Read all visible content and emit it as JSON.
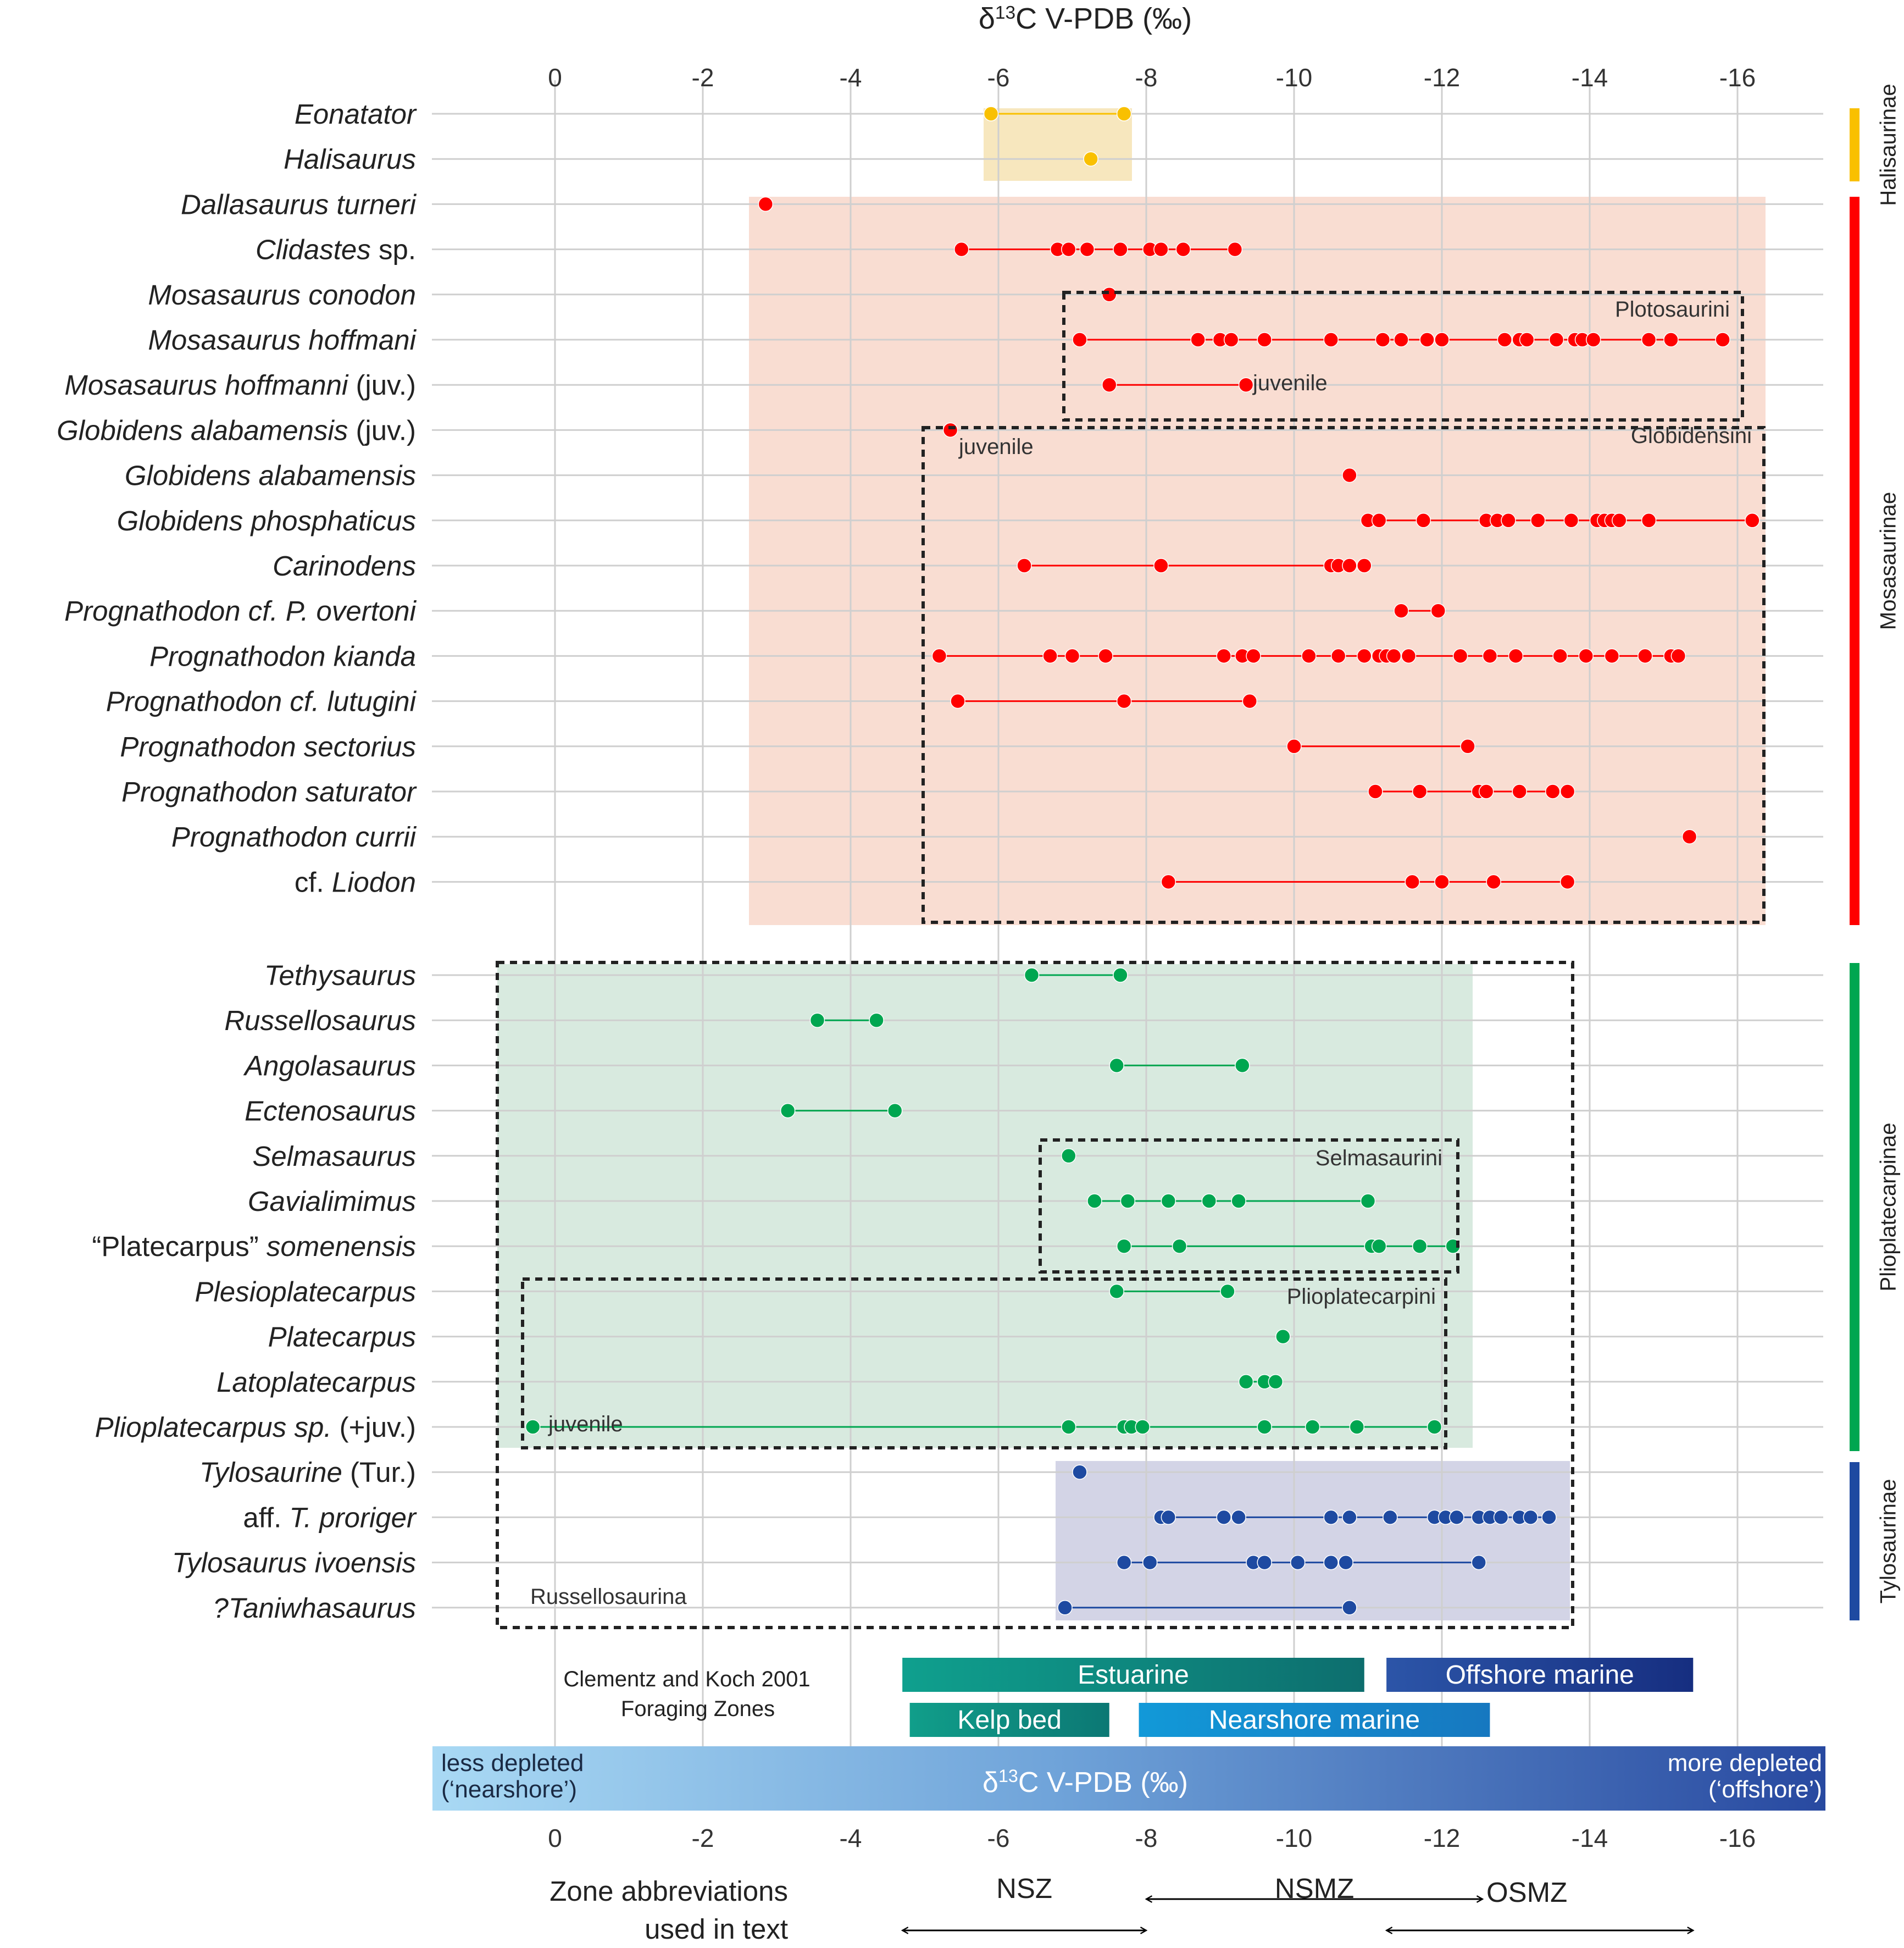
{
  "chart_data": {
    "type": "scatter",
    "title": "δ13C V-PDB (‰)",
    "xlabel": "δ13C V-PDB (‰)",
    "x_ticks": [
      "0",
      "-2",
      "-4",
      "-6",
      "-8",
      "-10",
      "-12",
      "-14",
      "-16"
    ],
    "xlim": [
      1.7,
      -17.1
    ],
    "taxa": [
      {
        "name": "Eonatator",
        "suffix": "",
        "prefix": "",
        "group": "Halisaurinae",
        "values": [
          -5.9,
          -7.7
        ]
      },
      {
        "name": "Halisaurus",
        "suffix": "",
        "prefix": "",
        "group": "Halisaurinae",
        "values": [
          -7.25
        ]
      },
      {
        "name": "Dallasaurus turneri",
        "suffix": "",
        "prefix": "",
        "group": "Mosasaurinae",
        "values": [
          -2.85
        ]
      },
      {
        "name": "Clidastes",
        "suffix": " sp.",
        "prefix": "",
        "group": "Mosasaurinae",
        "values": [
          -5.5,
          -6.8,
          -6.95,
          -7.2,
          -7.65,
          -8.05,
          -8.2,
          -8.5,
          -9.2
        ]
      },
      {
        "name": "Mosasaurus conodon",
        "suffix": "",
        "prefix": "",
        "group": "Mosasaurinae",
        "values": [
          -7.5
        ]
      },
      {
        "name": "Mosasaurus hoffmani",
        "suffix": "",
        "prefix": "",
        "group": "Mosasaurinae",
        "values": [
          -7.1,
          -8.7,
          -9.0,
          -9.15,
          -9.6,
          -10.5,
          -11.2,
          -11.45,
          -11.8,
          -12.0,
          -12.85,
          -13.05,
          -13.15,
          -13.55,
          -13.8,
          -13.9,
          -14.05,
          -14.8,
          -15.1,
          -15.8
        ]
      },
      {
        "name": "Mosasaurus hoffmanni",
        "suffix": " (juv.)",
        "prefix": "",
        "group": "Mosasaurinae",
        "values": [
          -7.5,
          -9.35
        ]
      },
      {
        "name": "Globidens alabamensis",
        "suffix": " (juv.)",
        "prefix": "",
        "group": "Mosasaurinae",
        "values": [
          -5.35
        ]
      },
      {
        "name": "Globidens alabamensis",
        "suffix": "",
        "prefix": "",
        "group": "Mosasaurinae",
        "values": [
          -10.75
        ]
      },
      {
        "name": "Globidens phosphaticus",
        "suffix": "",
        "prefix": "",
        "group": "Mosasaurinae",
        "values": [
          -11.0,
          -11.15,
          -11.75,
          -12.6,
          -12.75,
          -12.9,
          -13.3,
          -13.75,
          -14.1,
          -14.2,
          -14.3,
          -14.4,
          -14.8,
          -16.2
        ]
      },
      {
        "name": "Carinodens",
        "suffix": "",
        "prefix": "",
        "group": "Mosasaurinae",
        "values": [
          -6.35,
          -8.2,
          -10.5,
          -10.6,
          -10.75,
          -10.95
        ]
      },
      {
        "name": "Prognathodon cf. P. overtoni",
        "suffix": "",
        "prefix": "",
        "group": "Mosasaurinae",
        "values": [
          -11.45,
          -11.95
        ]
      },
      {
        "name": "Prognathodon kianda",
        "suffix": "",
        "prefix": "",
        "group": "Mosasaurinae",
        "values": [
          -5.2,
          -6.7,
          -7.0,
          -7.45,
          -9.05,
          -9.3,
          -9.45,
          -10.2,
          -10.6,
          -10.95,
          -11.15,
          -11.25,
          -11.35,
          -11.55,
          -12.25,
          -12.65,
          -13.0,
          -13.6,
          -13.95,
          -14.3,
          -14.75,
          -15.1,
          -15.2
        ]
      },
      {
        "name": "Prognathodon cf. lutugini",
        "suffix": "",
        "prefix": "",
        "group": "Mosasaurinae",
        "values": [
          -5.45,
          -7.7,
          -9.4
        ]
      },
      {
        "name": "Prognathodon sectorius",
        "suffix": "",
        "prefix": "",
        "group": "Mosasaurinae",
        "values": [
          -10.0,
          -12.35
        ]
      },
      {
        "name": "Prognathodon saturator",
        "suffix": "",
        "prefix": "",
        "group": "Mosasaurinae",
        "values": [
          -11.1,
          -11.7,
          -12.5,
          -12.6,
          -13.05,
          -13.5,
          -13.7
        ]
      },
      {
        "name": "Prognathodon currii",
        "suffix": "",
        "prefix": "",
        "group": "Mosasaurinae",
        "values": [
          -15.35
        ]
      },
      {
        "name": "Liodon",
        "suffix": "",
        "prefix": "cf. ",
        "group": "Mosasaurinae",
        "values": [
          -8.3,
          -11.6,
          -12.0,
          -12.7,
          -13.7
        ]
      },
      {
        "name": "Tethysaurus",
        "suffix": "",
        "prefix": "",
        "group": "Plioplatecarpinae",
        "values": [
          -6.45,
          -7.65
        ]
      },
      {
        "name": "Russellosaurus",
        "suffix": "",
        "prefix": "",
        "group": "Plioplatecarpinae",
        "values": [
          -3.55,
          -4.35
        ]
      },
      {
        "name": "Angolasaurus",
        "suffix": "",
        "prefix": "",
        "group": "Plioplatecarpinae",
        "values": [
          -7.6,
          -9.3
        ]
      },
      {
        "name": "Ectenosaurus",
        "suffix": "",
        "prefix": "",
        "group": "Plioplatecarpinae",
        "values": [
          -3.15,
          -4.6
        ]
      },
      {
        "name": "Selmasaurus",
        "suffix": "",
        "prefix": "",
        "group": "Plioplatecarpinae",
        "values": [
          -6.95
        ]
      },
      {
        "name": "Gavialimimus",
        "suffix": "",
        "prefix": "",
        "group": "Plioplatecarpinae",
        "values": [
          -7.3,
          -7.75,
          -8.3,
          -8.85,
          -9.25,
          -11.0
        ]
      },
      {
        "name": "somenensis",
        "suffix": "",
        "prefix": "“Platecarpus” ",
        "group": "Plioplatecarpinae",
        "values": [
          -7.7,
          -8.45,
          -11.05,
          -11.15,
          -11.7,
          -12.15
        ]
      },
      {
        "name": "Plesioplatecarpus",
        "suffix": "",
        "prefix": "",
        "group": "Plioplatecarpinae",
        "values": [
          -7.6,
          -9.1
        ]
      },
      {
        "name": "Platecarpus",
        "suffix": "",
        "prefix": "",
        "group": "Plioplatecarpinae",
        "values": [
          -9.85
        ]
      },
      {
        "name": "Latoplatecarpus",
        "suffix": "",
        "prefix": "",
        "group": "Plioplatecarpinae",
        "values": [
          -9.35,
          -9.6,
          -9.75
        ]
      },
      {
        "name": "Plioplatecarpus sp.",
        "suffix": " (+juv.)",
        "prefix": "",
        "group": "Plioplatecarpinae",
        "values": [
          0.3,
          -6.95,
          -7.7,
          -7.8,
          -7.95,
          -9.6,
          -10.25,
          -10.85,
          -11.9
        ]
      },
      {
        "name": "Tylosaurine",
        "suffix": " (Tur.)",
        "prefix": "",
        "group": "Tylosaurinae",
        "values": [
          -7.1
        ]
      },
      {
        "name": "T. proriger",
        "suffix": "",
        "prefix": "aff. ",
        "group": "Tylosaurinae",
        "values": [
          -8.2,
          -8.3,
          -9.05,
          -9.25,
          -10.5,
          -10.75,
          -11.3,
          -11.9,
          -12.05,
          -12.2,
          -12.5,
          -12.65,
          -12.8,
          -13.05,
          -13.2,
          -13.45
        ]
      },
      {
        "name": "Tylosaurus ivoensis",
        "suffix": "",
        "prefix": "",
        "group": "Tylosaurinae",
        "values": [
          -7.7,
          -8.05,
          -9.45,
          -9.6,
          -10.05,
          -10.5,
          -10.7,
          -12.5
        ]
      },
      {
        "name": "?Taniwhasaurus",
        "suffix": "",
        "prefix": "",
        "group": "Tylosaurinae",
        "values": [
          -6.9,
          -10.75
        ]
      }
    ],
    "groups": [
      {
        "name": "Halisaurinae",
        "color": "#F9C000"
      },
      {
        "name": "Mosasaurinae",
        "color": "#FF0000"
      },
      {
        "name": "Plioplatecarpinae",
        "color": "#00A650"
      },
      {
        "name": "Tylosaurinae",
        "color": "#1E4AA1"
      }
    ],
    "tribes": [
      "Plotosaurini",
      "Globidensini",
      "Selmasaurini",
      "Plioplatecarpini",
      "Russellosaurina"
    ],
    "annotations": [
      "juvenile",
      "juvenile",
      "juvenile"
    ],
    "foraging_zones": {
      "caption_line1": "Clementz and Koch 2001",
      "caption_line2": "Foraging Zones",
      "bars": [
        {
          "label": "Estuarine",
          "range": [
            -4.7,
            -10.95
          ]
        },
        {
          "label": "Offshore marine",
          "range": [
            -11.25,
            -15.4
          ]
        },
        {
          "label": "Kelp bed",
          "range": [
            -4.8,
            -7.5
          ]
        },
        {
          "label": "Nearshore marine",
          "range": [
            -7.9,
            -12.65
          ]
        }
      ]
    },
    "gradient_bar": {
      "left_line1": "less depleted",
      "left_line2": "(‘nearshore’)",
      "center": "δ13C V-PDB (‰)",
      "right_line1": "more depleted",
      "right_line2": "(‘offshore’)"
    },
    "zone_abbreviations": {
      "caption_line1": "Zone abbreviations",
      "caption_line2": "used in text",
      "zones": [
        {
          "label": "NSZ",
          "range": [
            -4.7,
            -8.0
          ]
        },
        {
          "label": "NSMZ",
          "range": [
            -8.0,
            -12.55
          ]
        },
        {
          "label": "OSMZ",
          "range": [
            -11.25,
            -15.4
          ]
        }
      ]
    }
  }
}
